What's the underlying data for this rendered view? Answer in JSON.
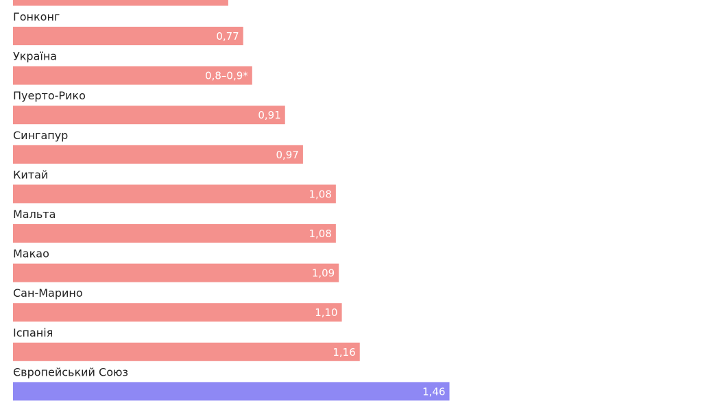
{
  "chart_data": {
    "type": "barh",
    "categories": [
      null,
      "Гонконг",
      "Україна",
      "Пуерто-Рико",
      "Сингапур",
      "Китай",
      "Мальта",
      "Макао",
      "Сан-Марино",
      "Іспанія",
      "Європейський Союз"
    ],
    "values": [
      0.72,
      0.77,
      0.8,
      0.91,
      0.97,
      1.08,
      1.08,
      1.09,
      1.1,
      1.16,
      1.46
    ],
    "value_labels": [
      null,
      "0,77",
      "0,8–0,9*",
      "0,91",
      "0,97",
      "1,08",
      "1,08",
      "1,09",
      "1,10",
      "1,16",
      "1,46"
    ],
    "colors": [
      "#f4918d",
      "#f4918d",
      "#f4918d",
      "#f4918d",
      "#f4918d",
      "#f4918d",
      "#f4918d",
      "#f4918d",
      "#f4918d",
      "#f4918d",
      "#8e88f4"
    ]
  }
}
